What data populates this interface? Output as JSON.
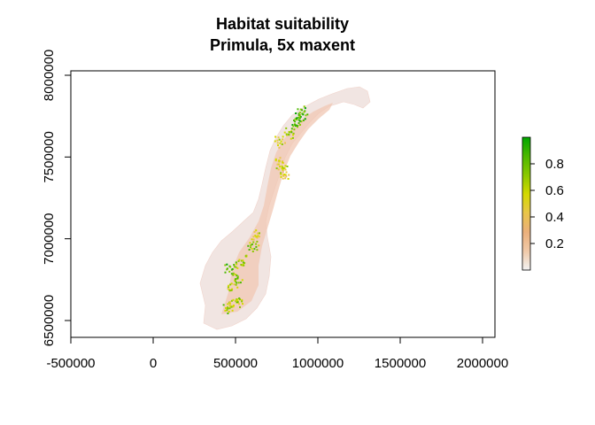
{
  "title": {
    "line1": "Habitat suitability",
    "line2": "Primula, 5x maxent"
  },
  "map_data": {
    "type": "raster-map",
    "x_axis": {
      "ticks": [
        -500000,
        0,
        500000,
        1000000,
        1500000,
        2000000
      ],
      "tick_labels": [
        "-500000",
        "0",
        "500000",
        "1000000",
        "1500000",
        "2000000"
      ],
      "range": [
        -500000,
        2000000
      ]
    },
    "y_axis": {
      "ticks": [
        6500000,
        7000000,
        7500000,
        8000000
      ],
      "tick_labels": [
        "6500000",
        "7000000",
        "7500000",
        "8000000"
      ],
      "range": [
        6400000,
        8000000
      ]
    },
    "legend": {
      "placement": "right",
      "range": [
        0,
        1
      ],
      "ticks": [
        0.2,
        0.4,
        0.6,
        0.8
      ],
      "tick_labels": [
        "0.2",
        "0.4",
        "0.6",
        "0.8"
      ],
      "colors": [
        "#f2f2f2",
        "#f0c9a8",
        "#ebb07c",
        "#e9c54a",
        "#d4d900",
        "#8bc800",
        "#4cb800",
        "#00a600"
      ]
    },
    "suitability_patches": [
      {
        "x": 450000,
        "y": 6580000,
        "v": 0.65
      },
      {
        "x": 480000,
        "y": 6600000,
        "v": 0.55
      },
      {
        "x": 510000,
        "y": 6620000,
        "v": 0.7
      },
      {
        "x": 470000,
        "y": 6700000,
        "v": 0.6
      },
      {
        "x": 500000,
        "y": 6760000,
        "v": 0.75
      },
      {
        "x": 460000,
        "y": 6820000,
        "v": 0.8
      },
      {
        "x": 530000,
        "y": 6850000,
        "v": 0.7
      },
      {
        "x": 560000,
        "y": 6900000,
        "v": 0.6
      },
      {
        "x": 600000,
        "y": 6960000,
        "v": 0.75
      },
      {
        "x": 620000,
        "y": 7020000,
        "v": 0.55
      },
      {
        "x": 780000,
        "y": 7440000,
        "v": 0.6
      },
      {
        "x": 760000,
        "y": 7480000,
        "v": 0.5
      },
      {
        "x": 790000,
        "y": 7390000,
        "v": 0.45
      },
      {
        "x": 760000,
        "y": 7600000,
        "v": 0.55
      },
      {
        "x": 820000,
        "y": 7650000,
        "v": 0.7
      },
      {
        "x": 860000,
        "y": 7700000,
        "v": 0.85
      },
      {
        "x": 880000,
        "y": 7740000,
        "v": 0.9
      },
      {
        "x": 900000,
        "y": 7780000,
        "v": 0.85
      }
    ]
  }
}
